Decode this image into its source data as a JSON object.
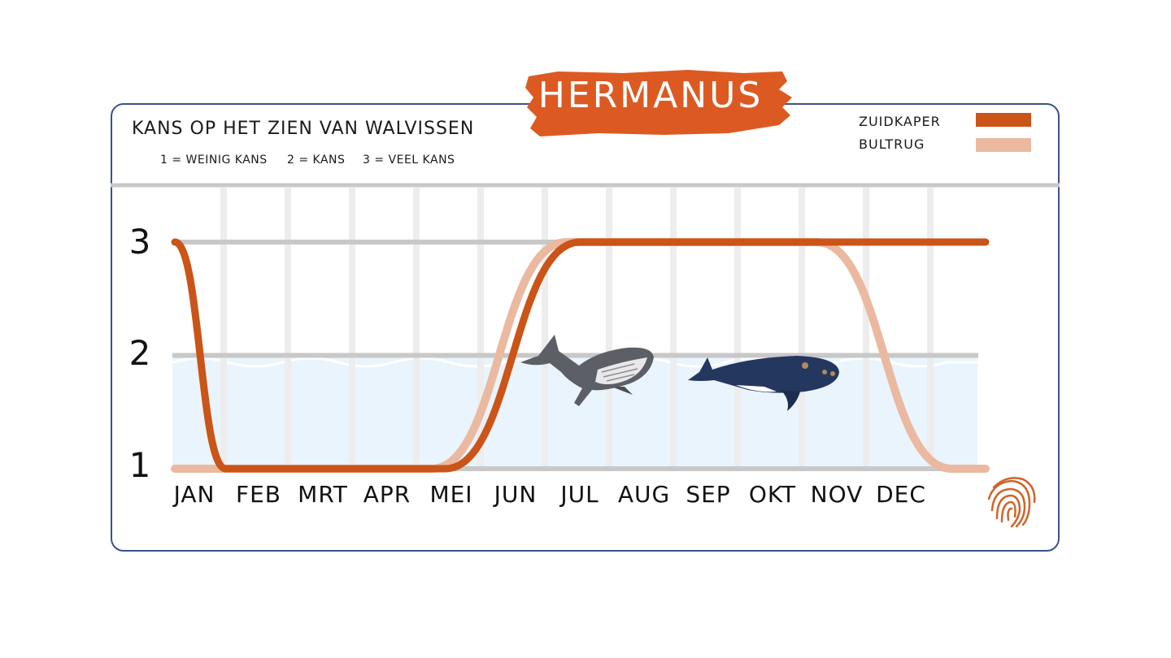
{
  "banner": {
    "text": "HERMANUS"
  },
  "chart_data": {
    "type": "line",
    "title": "KANS OP HET ZIEN VAN WALVISSEN",
    "subtitle": [
      "1 = WEINIG KANS",
      "2 = KANS",
      "3 = VEEL KANS"
    ],
    "categories": [
      "JAN",
      "FEB",
      "MRT",
      "APR",
      "MEI",
      "JUN",
      "JUL",
      "AUG",
      "SEP",
      "OKT",
      "NOV",
      "DEC"
    ],
    "yticks": [
      "1",
      "2",
      "3"
    ],
    "ylim": [
      1,
      3
    ],
    "grid": true,
    "legend_position": "top-right",
    "series": [
      {
        "name": "ZUIDKAPER",
        "color": "#cb5418",
        "x": [
          0,
          0.75,
          4.0,
          6.0,
          12.0
        ],
        "values": [
          3.0,
          1.0,
          1.0,
          3.0,
          3.0
        ]
      },
      {
        "name": "BULTRUG",
        "color": "#ebb9a0",
        "x": [
          0,
          0.75,
          3.8,
          5.8,
          9.5,
          11.5,
          12.0
        ],
        "values": [
          1.0,
          1.0,
          1.0,
          3.0,
          3.0,
          1.0,
          1.0
        ]
      }
    ]
  },
  "colors": {
    "banner": "#dc5a22",
    "border": "#3b5288",
    "water": "#e9f4fd",
    "gridline": "#c8c8c8"
  },
  "icons": [
    "humpback-whale-icon",
    "southern-right-whale-icon",
    "fingerprint-icon"
  ]
}
